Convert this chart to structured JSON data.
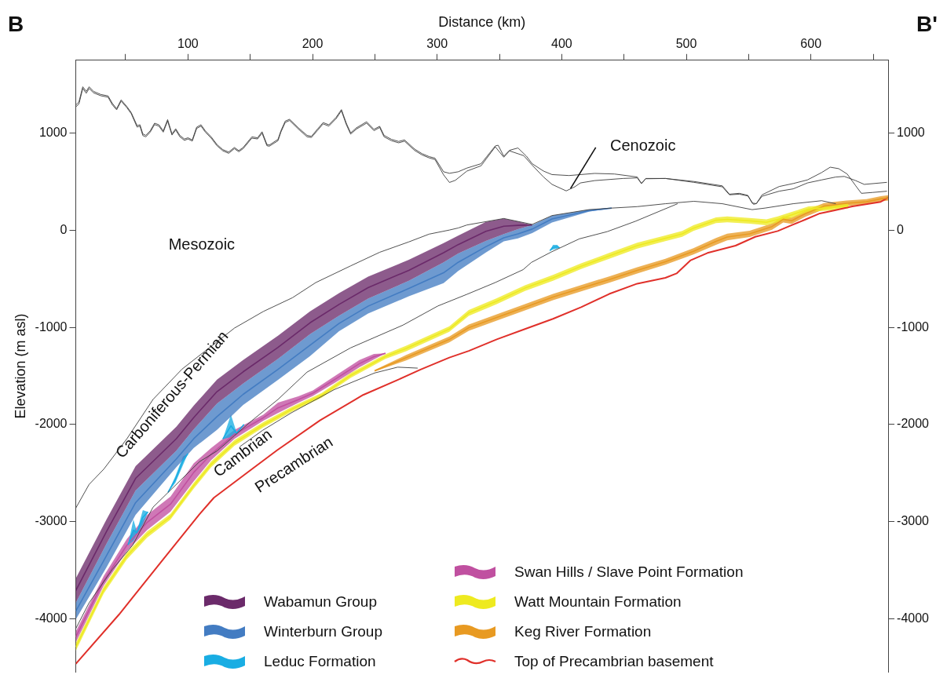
{
  "chart_data": {
    "type": "line",
    "xlabel": "Distance (km)",
    "ylabel": "Elevation (m asl)",
    "xlim": [
      10,
      662
    ],
    "xticks": [
      {
        "value": 50,
        "label": null
      },
      100,
      {
        "value": 150,
        "label": null
      },
      200,
      {
        "value": 250,
        "label": null
      },
      300,
      {
        "value": 350,
        "label": null
      },
      400,
      {
        "value": 450,
        "label": null
      },
      500,
      {
        "value": 550,
        "label": null
      },
      600,
      {
        "value": 650,
        "label": null
      }
    ],
    "ylim": [
      -4550,
      1750
    ],
    "yticks": [
      -4000,
      -3000,
      -2000,
      -1000,
      0,
      1000
    ],
    "y2lim": [
      -4550,
      1750
    ],
    "y2ticks": [
      -4000,
      -3000,
      -2000,
      -1000,
      0,
      1000
    ],
    "legend": "bottom",
    "annotations": [
      "B",
      "B'",
      "Mesozoic",
      "Carboniferous-Permian",
      "Cambrian",
      "Precambrian",
      {
        "text": "Cenozoic",
        "x": 407.1,
        "y": 430
      }
    ],
    "series": [
      {
        "color": "#3c3c3c",
        "x": [
          10,
          12.5,
          15.6,
          18.4,
          20.7,
          24.2,
          30,
          35.9,
          39.4,
          42.8,
          46.4,
          51,
          54.5,
          59.2,
          61.5,
          63.8,
          66.2,
          69.7,
          73.2,
          76.7,
          80.2,
          83.7,
          87.2,
          90.2,
          93.5,
          97.2,
          100,
          103.5,
          107,
          110.5,
          114,
          118.7,
          123.3,
          128,
          132.7,
          137.3,
          140.8,
          144.3,
          151.3,
          155.9,
          159.5,
          163.4,
          165.3,
          172.3,
          174.6,
          178.1,
          181.6,
          188.6,
          195.6,
          199.1,
          203.8,
          208.5,
          213.1,
          219,
          223.2,
          227.1,
          230.6,
          235.3,
          243.4,
          249.3,
          253.9,
          257.4,
          263.3,
          269.1,
          273.8,
          281.9,
          287.8,
          293.6,
          298.3,
          305.2,
          309.9,
          316.9,
          323.9,
          335.3,
          346.7,
          349,
          353.5,
          358.1,
          364.9,
          371.7,
          376.3,
          385.4,
          392.2,
          405.9,
          426.4,
          442.3,
          460.6,
          464,
          467.4,
          483.3,
          506.1,
          528.9,
          534.6,
          542.5,
          549.4,
          552.8,
          556.2,
          560.8,
          574.5,
          585.8,
          597.2,
          608.6,
          615.5,
          622.3,
          629.1,
          636,
          640.5,
          649.6,
          661
        ],
        "values": [
          1289,
          1320,
          1477,
          1430,
          1477,
          1430,
          1398,
          1383,
          1305,
          1252,
          1342,
          1274,
          1211,
          1077,
          1086,
          992,
          977,
          1023,
          1102,
          1086,
          1023,
          1139,
          992,
          1045,
          977,
          939,
          952,
          930,
          1061,
          1086,
          1023,
          961,
          883,
          830,
          805,
          852,
          820,
          852,
          961,
          952,
          1014,
          883,
          877,
          936,
          1023,
          1124,
          1142,
          1055,
          977,
          967,
          1039,
          1108,
          1086,
          1164,
          1242,
          1102,
          1002,
          1055,
          1117,
          1039,
          1070,
          977,
          936,
          914,
          930,
          836,
          789,
          758,
          742,
          602,
          586,
          602,
          640,
          685,
          868,
          875,
          762,
          823,
          847,
          762,
          685,
          609,
          573,
          563,
          585,
          579,
          548,
          481,
          533,
          533,
          502,
          457,
          371,
          380,
          359,
          280,
          274,
          365,
          450,
          481,
          518,
          594,
          649,
          634,
          579,
          457,
          380,
          389,
          402
        ]
      },
      {
        "color": "#3c3c3c",
        "x": [
          10,
          12.5,
          15.6,
          18.4,
          20.7,
          24.2,
          30,
          35.9,
          39.4,
          42.8,
          46.4,
          51,
          54.5,
          59.2,
          61.5,
          63.8,
          66.2,
          69.7,
          73.2,
          76.7,
          80.2,
          83.7,
          87.2,
          90.2,
          93.5,
          97.2,
          100,
          103.5,
          107,
          110.5,
          114,
          118.7,
          123.3,
          128,
          132.7,
          137.3,
          140.8,
          144.3,
          151.3,
          155.9,
          159.5,
          163.4,
          165.3,
          172.3,
          174.6,
          178.1,
          181.6,
          188.6,
          195.6,
          199.1,
          203.8,
          208.5,
          213.1,
          219,
          223.2,
          227.1,
          230.6,
          235.3,
          243.4,
          249.3,
          253.9,
          257.4,
          263.3,
          269.1,
          273.8,
          281.9,
          287.8,
          293.6,
          298.3,
          305.2,
          309.9,
          314.6,
          323.9,
          335.3,
          346.7,
          353.5,
          358.1,
          369.5,
          376.3,
          385.4,
          392.2,
          403.6,
          410.5,
          415,
          426.4,
          449.2,
          460.6,
          464,
          467.4,
          483.3,
          506.1,
          528.9,
          534.6,
          542.5,
          549.4,
          553.9,
          556.2,
          560.8,
          574.5,
          585.8,
          597.2,
          608.6,
          620,
          626.8,
          635.9,
          642.8,
          661
        ],
        "values": [
          1270,
          1300,
          1460,
          1410,
          1460,
          1415,
          1385,
          1370,
          1290,
          1240,
          1330,
          1262,
          1200,
          1062,
          1072,
          975,
          962,
          1010,
          1088,
          1072,
          1010,
          1125,
          980,
          1032,
          962,
          925,
          940,
          918,
          1048,
          1072,
          1010,
          948,
          870,
          818,
          792,
          840,
          808,
          840,
          948,
          940,
          1000,
          870,
          865,
          922,
          1010,
          1110,
          1130,
          1042,
          962,
          955,
          1025,
          1095,
          1072,
          1150,
          1230,
          1088,
          990,
          1042,
          1103,
          1025,
          1058,
          962,
          922,
          900,
          917,
          822,
          776,
          745,
          728,
          570,
          492,
          514,
          609,
          664,
          859,
          752,
          817,
          768,
          670,
          548,
          472,
          405,
          447,
          487,
          511,
          533,
          539,
          481,
          530,
          533,
          493,
          447,
          365,
          371,
          353,
          267,
          274,
          350,
          402,
          426,
          487,
          518,
          548,
          554,
          511,
          472,
          493
        ]
      },
      {
        "color": "#3c3c3c",
        "x": [
          10,
          20.7,
          32.4,
          51,
          72,
          95.3,
          114,
          137.3,
          160.6,
          183.9,
          202.6,
          230.6,
          253.9,
          277.3,
          293.6,
          309.9,
          316.9,
          323.9,
          353.5,
          376.3,
          392.2,
          421.8,
          440.1,
          460.6,
          483.3,
          506.1,
          528.9,
          552.8,
          563.1,
          585.8,
          608.6,
          620
        ],
        "values": [
          -2861,
          -2617,
          -2461,
          -2148,
          -1742,
          -1430,
          -1242,
          -1008,
          -836,
          -695,
          -539,
          -367,
          -227,
          -120,
          -40,
          2,
          23,
          54,
          121,
          60,
          151,
          212,
          228,
          243,
          273,
          298,
          273,
          212,
          228,
          273,
          304,
          273
        ]
      },
      {
        "color": "#3c3c3c",
        "x": [
          10,
          20.7,
          39.4,
          55.7,
          72,
          109.3,
          123.3,
          137.3,
          151.3,
          172.3,
          195.6,
          230.6,
          272.6,
          300.6,
          323.9,
          346.4,
          369,
          375.7,
          391.5,
          414.1,
          436.6,
          459.1,
          481.7,
          493
        ],
        "values": [
          -4102,
          -3836,
          -3492,
          -3242,
          -2852,
          -2383,
          -2273,
          -2117,
          -1961,
          -1742,
          -1461,
          -1211,
          -977,
          -780,
          -660,
          -540,
          -406,
          -331,
          -225,
          -89,
          -14,
          92,
          213,
          273
        ]
      },
      {
        "color": "#3c3c3c",
        "x": [
          141.5,
          160,
          183,
          217.6,
          249.8,
          268.3,
          284.4
        ],
        "values": [
          -2230,
          -2060,
          -1880,
          -1640,
          -1470,
          -1410,
          -1420
        ]
      },
      {
        "name": "Wabamun Group",
        "color": "#6b2a6a",
        "x": [
          10,
          34.7,
          58,
          90.7,
          104.7,
          123.3,
          144.3,
          172.3,
          198,
          221.3,
          244.6,
          277.3,
          305.2,
          316.9,
          339.1,
          353.5,
          364.9,
          376.3
        ],
        "values": [
          -3711,
          -3102,
          -2555,
          -2147,
          -1928,
          -1662,
          -1458,
          -1206,
          -953,
          -764,
          -591,
          -413,
          -232,
          -148,
          -12,
          41,
          50,
          54
        ],
        "upper": [
          -3586,
          -2977,
          -2430,
          -2024,
          -1805,
          -1539,
          -1336,
          -1086,
          -836,
          -648,
          -477,
          -305,
          -133,
          -55,
          86,
          121,
          90,
          54
        ],
        "lower": [
          -3836,
          -3227,
          -2680,
          -2270,
          -2050,
          -1785,
          -1580,
          -1325,
          -1070,
          -880,
          -705,
          -520,
          -330,
          -240,
          -110,
          -40,
          10,
          54
        ]
      },
      {
        "name": "Winterburn Group",
        "color": "#437cc2",
        "x": [
          10,
          34.7,
          58,
          90.7,
          104.7,
          123.3,
          144.3,
          172.3,
          198,
          221.3,
          244.6,
          277.3,
          305.2,
          316.9,
          339.1,
          353.5,
          364.9,
          376.3,
          392.2,
          421.8,
          440.1
        ],
        "values": [
          -3922,
          -3349,
          -2805,
          -2355,
          -2146,
          -1920,
          -1690,
          -1433,
          -1184,
          -960,
          -782,
          -600,
          -438,
          -330,
          -170,
          -78,
          -38,
          12,
          116,
          201,
          228
        ],
        "upper": [
          -3836,
          -3227,
          -2680,
          -2270,
          -2050,
          -1785,
          -1580,
          -1325,
          -1070,
          -880,
          -705,
          -520,
          -330,
          -240,
          -110,
          -40,
          10,
          54,
          151,
          212,
          228
        ],
        "lower": [
          -4008,
          -3470,
          -2930,
          -2440,
          -2242,
          -2055,
          -1800,
          -1540,
          -1297,
          -1040,
          -858,
          -680,
          -545,
          -420,
          -230,
          -115,
          -85,
          -30,
          80,
          190,
          228
        ]
      },
      {
        "name": "Leduc Formation",
        "color": "#19ade3",
        "x": [
          52,
          56.2,
          59,
          63.8,
          68,
          75,
          84,
          90,
          96,
          100,
          110,
          128,
          134.5,
          139,
          145,
          200,
          390.5,
          393,
          396.5,
          398.3
        ],
        "values": [
          -3240,
          -3089,
          -3115,
          -2957,
          -2900,
          null,
          -2700,
          -2565,
          -2375,
          -2300,
          null,
          -2150,
          -2014,
          -2090,
          -2000,
          null,
          -210,
          -175,
          -170,
          -180
        ],
        "upper": [
          -3240,
          -2977,
          -3100,
          -2883,
          -2900,
          null,
          -2700,
          -2530,
          -2330,
          -2300,
          null,
          -2150,
          -1898,
          -2080,
          -2000,
          null,
          -210,
          -150,
          -150,
          -180
        ],
        "lower": [
          -3240,
          -3200,
          -3130,
          -3030,
          -2900,
          null,
          -2700,
          -2600,
          -2420,
          -2300,
          null,
          -2150,
          -2130,
          -2100,
          -2000,
          null,
          -210,
          -200,
          -190,
          -180
        ]
      },
      {
        "name": "Swan Hills / Slave Point Formation",
        "color": "#c050a0",
        "x": [
          10,
          32.4,
          51,
          67.3,
          86,
          104.7,
          118.7,
          137.3,
          160.6,
          172.3,
          188.6,
          200.3,
          219,
          237.6,
          249.3,
          258.6
        ],
        "values": [
          -4188,
          -3610,
          -3243,
          -3008,
          -2821,
          -2493,
          -2305,
          -2102,
          -1930,
          -1829,
          -1744,
          -1678,
          -1527,
          -1374,
          -1302,
          -1267
        ],
        "upper": [
          -4133,
          -3560,
          -3180,
          -2930,
          -2742,
          -2399,
          -2242,
          -2055,
          -1898,
          -1774,
          -1711,
          -1649,
          -1492,
          -1336,
          -1274,
          -1267
        ],
        "lower": [
          -4243,
          -3660,
          -3305,
          -3086,
          -2899,
          -2586,
          -2367,
          -2148,
          -1961,
          -1883,
          -1777,
          -1706,
          -1562,
          -1412,
          -1330,
          -1267
        ]
      },
      {
        "name": "Watt Mountain Formation",
        "color": "#eeea20",
        "x": [
          10,
          32.4,
          51,
          67.3,
          86,
          104.7,
          118.7,
          137.3,
          160.6,
          183.9,
          207.3,
          230.6,
          258.6,
          275.2,
          309.8,
          325.4,
          347.9,
          370.5,
          393,
          415.6,
          438.1,
          460.6,
          483.2,
          496.7,
          505.7,
          523.8,
          532.8,
          550.8,
          564.3,
          573.4,
          584.6,
          598.1,
          617.2,
          630
        ],
        "values": [
          -4290,
          -3705,
          -3355,
          -3133,
          -2950,
          -2630,
          -2410,
          -2190,
          -2003,
          -1840,
          -1700,
          -1495,
          -1300,
          -1218,
          -1018,
          -852,
          -731,
          -596,
          -490,
          -370,
          -264,
          -159,
          -83,
          -38,
          22,
          103,
          112,
          97,
          82,
          112,
          158,
          218,
          233,
          250
        ],
        "upper": [
          -4250,
          -3670,
          -3320,
          -3100,
          -2920,
          -2600,
          -2380,
          -2160,
          -1975,
          -1815,
          -1675,
          -1470,
          -1275,
          -1190,
          -990,
          -822,
          -701,
          -566,
          -460,
          -340,
          -234,
          -129,
          -53,
          -8,
          52,
          133,
          142,
          127,
          112,
          142,
          188,
          245,
          260,
          275
        ],
        "lower": [
          -4330,
          -3740,
          -3390,
          -3165,
          -2980,
          -2660,
          -2440,
          -2220,
          -2030,
          -1865,
          -1725,
          -1520,
          -1325,
          -1245,
          -1045,
          -882,
          -761,
          -626,
          -520,
          -400,
          -294,
          -189,
          -113,
          -68,
          -8,
          73,
          82,
          67,
          52,
          82,
          128,
          190,
          205,
          225
        ]
      },
      {
        "name": "Keg River Formation",
        "color": "#e89a22",
        "x": [
          249.8,
          275.2,
          309.8,
          325.4,
          347.9,
          370.5,
          393,
          415.6,
          438.1,
          460.6,
          483.2,
          505.7,
          523.8,
          532.8,
          550.8,
          568.8,
          577.8,
          584.6,
          595.9,
          610.4,
          628.6,
          644.6,
          656,
          662
        ],
        "values": [
          -1448,
          -1313,
          -1125,
          -1003,
          -898,
          -793,
          -688,
          -598,
          -508,
          -413,
          -325,
          -218,
          -115,
          -70,
          -38,
          38,
          113,
          98,
          173,
          248,
          278,
          293,
          323,
          333
        ],
        "upper": [
          -1440,
          -1285,
          -1095,
          -970,
          -865,
          -760,
          -655,
          -565,
          -475,
          -380,
          -295,
          -185,
          -80,
          -35,
          -5,
          70,
          145,
          130,
          205,
          280,
          305,
          320,
          350,
          360
        ],
        "lower": [
          -1455,
          -1340,
          -1155,
          -1035,
          -930,
          -825,
          -720,
          -630,
          -540,
          -445,
          -355,
          -250,
          -150,
          -105,
          -70,
          5,
          80,
          65,
          140,
          215,
          250,
          265,
          295,
          305
        ]
      },
      {
        "name": "Top of Precambrian basement",
        "color": "#e0302a",
        "x": [
          10,
          44.7,
          79.3,
          109.2,
          120.8,
          150.7,
          171.5,
          206,
          240.6,
          268.3,
          286.7,
          309.8,
          325.4,
          347.9,
          370.5,
          393,
          415.6,
          438.1,
          460.6,
          483.2,
          492.2,
          503.5,
          517,
          539.5,
          555.3,
          573.4,
          584.6,
          595.9,
          607.2,
          618.4,
          633.2,
          656,
          662
        ],
        "values": [
          -4465,
          -3957,
          -3402,
          -2925,
          -2755,
          -2466,
          -2266,
          -1958,
          -1696,
          -1542,
          -1434,
          -1311,
          -1243,
          -1123,
          -1017,
          -912,
          -792,
          -656,
          -550,
          -490,
          -445,
          -309,
          -234,
          -159,
          -68,
          -8,
          52,
          112,
          173,
          203,
          246,
          292,
          337
        ]
      }
    ]
  }
}
